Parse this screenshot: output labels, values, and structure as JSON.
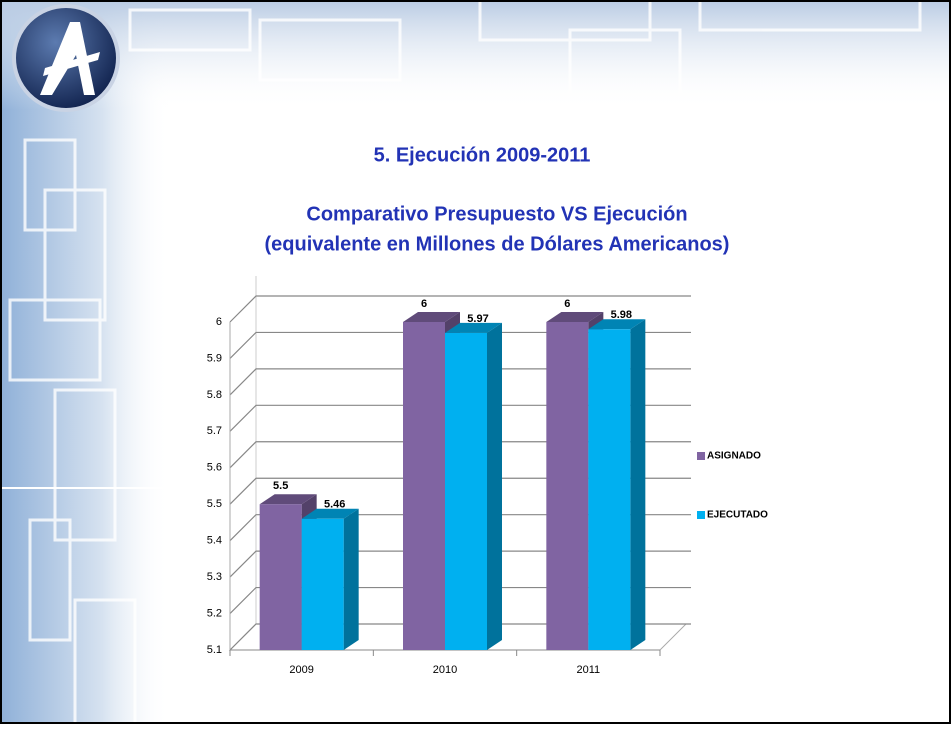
{
  "chart_data": {
    "type": "bar3d",
    "title": "5. Ejecución 2009-2011",
    "subtitle": [
      "Comparativo Presupuesto VS Ejecución",
      "(equivalente en Millones de Dólares Americanos)"
    ],
    "categories": [
      "2009",
      "2010",
      "2011"
    ],
    "series": [
      {
        "name": "ASIGNADO",
        "color": "#8064a2",
        "values": [
          5.5,
          6,
          6
        ]
      },
      {
        "name": "EJECUTADO",
        "color": "#00b0f0",
        "values": [
          5.46,
          5.97,
          5.98
        ]
      }
    ],
    "ylim": [
      5.1,
      6
    ],
    "yticks": [
      5.1,
      5.2,
      5.3,
      5.4,
      5.5,
      5.6,
      5.7,
      5.8,
      5.9,
      6
    ],
    "grid": true,
    "legend": "right"
  }
}
